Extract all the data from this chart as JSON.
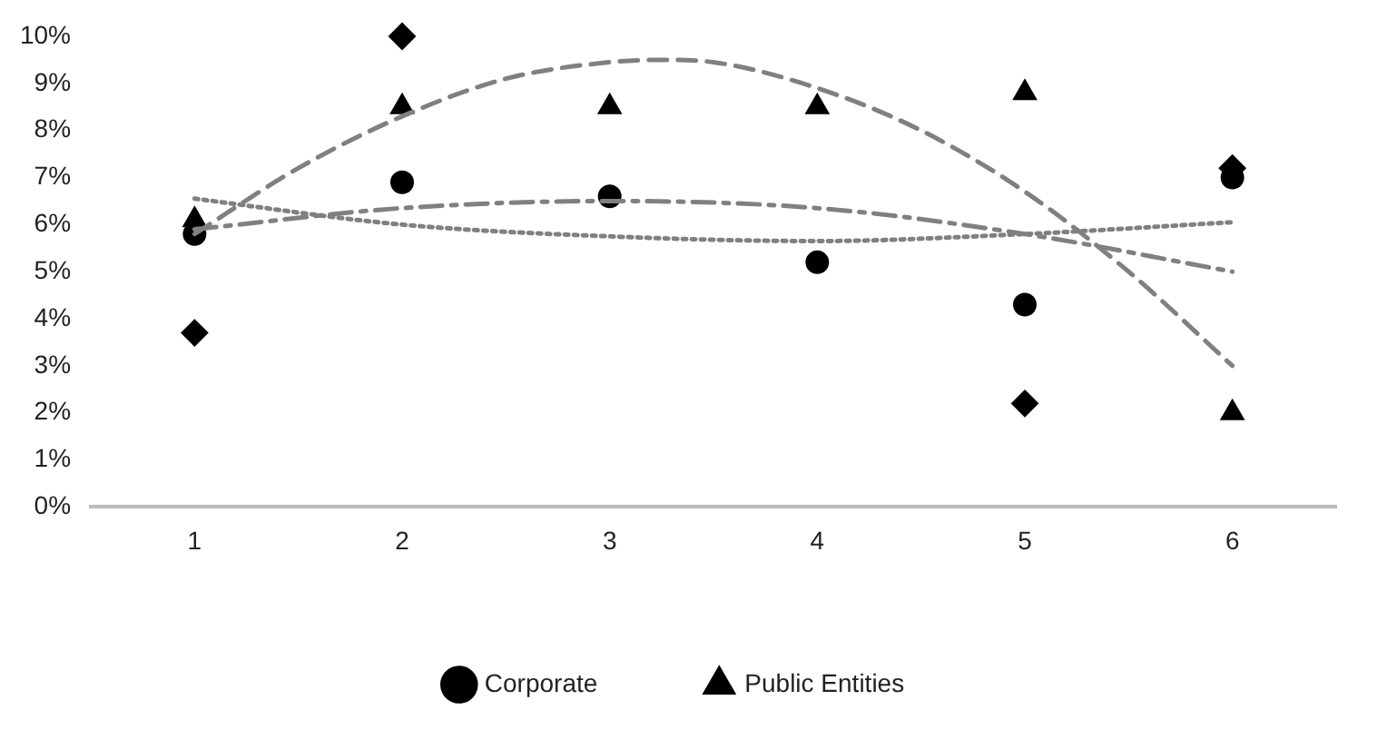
{
  "chart_data": {
    "type": "scatter",
    "x": [
      1,
      2,
      3,
      4,
      5,
      6
    ],
    "xlim": [
      0.5,
      6.5
    ],
    "xticks": [
      1,
      2,
      3,
      4,
      5,
      6
    ],
    "ylim": [
      0,
      10
    ],
    "yticks": [
      {
        "value": 0,
        "label": "0%"
      },
      {
        "value": 1,
        "label": "1%"
      },
      {
        "value": 2,
        "label": "2%"
      },
      {
        "value": 3,
        "label": "3%"
      },
      {
        "value": 4,
        "label": "4%"
      },
      {
        "value": 5,
        "label": "5%"
      },
      {
        "value": 6,
        "label": "6%"
      },
      {
        "value": 7,
        "label": "7%"
      },
      {
        "value": 8,
        "label": "8%"
      },
      {
        "value": 9,
        "label": "9%"
      },
      {
        "value": 10,
        "label": "10%"
      }
    ],
    "grid": false,
    "legend": "bottom",
    "series": [
      {
        "name": "Corporate",
        "color": "#000000",
        "marker": "circle",
        "values": [
          5.8,
          6.9,
          6.6,
          5.2,
          4.3,
          7.0
        ]
      },
      {
        "name": "Public Entities",
        "color": "#000000",
        "marker": "triangle",
        "values": [
          6.1,
          8.5,
          8.5,
          8.5,
          8.8,
          2.0
        ]
      },
      {
        "color": "#000000",
        "marker": "diamond",
        "values": [
          3.7,
          10.0,
          null,
          null,
          2.2,
          7.2
        ]
      },
      {
        "type": "line",
        "color": "#808080",
        "line_style": "dashed",
        "marker": "none",
        "x": [
          1,
          1.5,
          2,
          2.5,
          3,
          3.25,
          3.5,
          4,
          4.5,
          5,
          5.5,
          6
        ],
        "values": [
          5.8,
          7.2,
          8.3,
          9.1,
          9.45,
          9.5,
          9.45,
          8.9,
          8.0,
          6.7,
          5.0,
          3.0
        ]
      },
      {
        "type": "line",
        "color": "#808080",
        "line_style": "dashdot",
        "marker": "none",
        "x": [
          1,
          2,
          3,
          4,
          5,
          6
        ],
        "values": [
          5.9,
          6.35,
          6.5,
          6.35,
          5.8,
          5.0
        ]
      },
      {
        "type": "line",
        "color": "#808080",
        "line_style": "dotted",
        "marker": "none",
        "x": [
          1,
          2,
          3,
          4,
          5,
          6
        ],
        "values": [
          6.55,
          6.0,
          5.75,
          5.65,
          5.8,
          6.05
        ]
      }
    ]
  }
}
